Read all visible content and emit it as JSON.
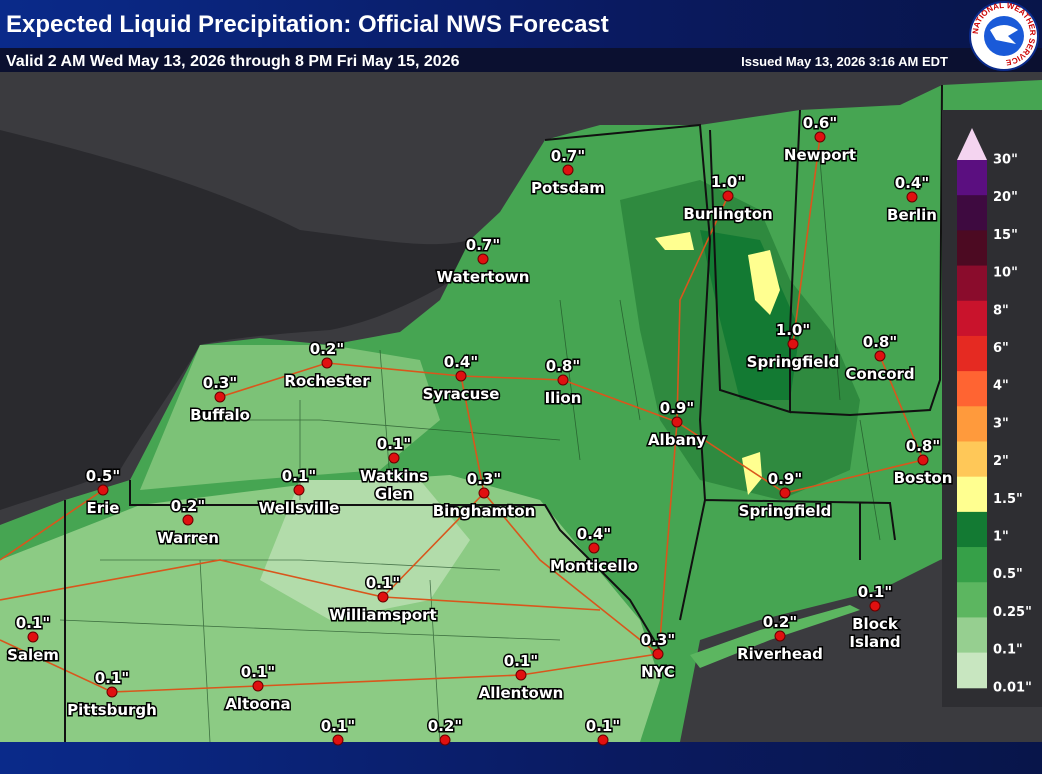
{
  "header": {
    "title": "Expected Liquid Precipitation: Official NWS Forecast",
    "valid": "Valid 2 AM Wed May 13, 2026 through 8 PM Fri May 15, 2026",
    "issued": "Issued May 13, 2026 3:16 AM EDT",
    "logo_text": "NATIONAL WEATHER SERVICE"
  },
  "cities": [
    {
      "name": "Potsdam",
      "amount": "0.7\""
    },
    {
      "name": "Newport",
      "amount": "0.6\""
    },
    {
      "name": "Burlington",
      "amount": "1.0\""
    },
    {
      "name": "Berlin",
      "amount": "0.4\""
    },
    {
      "name": "Watertown",
      "amount": "0.7\""
    },
    {
      "name": "Rochester",
      "amount": "0.2\""
    },
    {
      "name": "Syracuse",
      "amount": "0.4\""
    },
    {
      "name": "Ilion",
      "amount": "0.8\""
    },
    {
      "name": "Buffalo",
      "amount": "0.3\""
    },
    {
      "name": "Springfield",
      "amount": "1.0\""
    },
    {
      "name": "Concord",
      "amount": "0.8\""
    },
    {
      "name": "Albany",
      "amount": "0.9\""
    },
    {
      "name": "Boston",
      "amount": "0.8\""
    },
    {
      "name": [
        "Watkins",
        "Glen"
      ],
      "amount": "0.1\""
    },
    {
      "name": "Wellsville",
      "amount": "0.1\""
    },
    {
      "name": "Binghamton",
      "amount": "0.3\""
    },
    {
      "name": "Erie",
      "amount": "0.5\""
    },
    {
      "name": "Warren",
      "amount": "0.2\""
    },
    {
      "name": "Springfield",
      "amount": "0.9\""
    },
    {
      "name": "Monticello",
      "amount": "0.4\""
    },
    {
      "name": "Williamsport",
      "amount": "0.1\""
    },
    {
      "name": [
        "Block",
        "Island"
      ],
      "amount": "0.1\""
    },
    {
      "name": "Riverhead",
      "amount": "0.2\""
    },
    {
      "name": "NYC",
      "amount": "0.3\""
    },
    {
      "name": "Salem",
      "amount": "0.1\""
    },
    {
      "name": "Pittsburgh",
      "amount": "0.1\""
    },
    {
      "name": "Altoona",
      "amount": "0.1\""
    },
    {
      "name": "Allentown",
      "amount": "0.1\""
    },
    {
      "amount": "0.1\""
    },
    {
      "amount": "0.2\""
    },
    {
      "amount": "0.1\""
    }
  ],
  "legend": {
    "top_color": "#f4d4f0",
    "labels": [
      "30\"",
      "20\"",
      "15\"",
      "10\"",
      "8\"",
      "6\"",
      "4\"",
      "3\"",
      "2\"",
      "1.5\"",
      "1\"",
      "0.5\"",
      "0.25\"",
      "0.1\"",
      "0.01\""
    ],
    "colors": [
      "#5b0f80",
      "#3e0a40",
      "#4c0a22",
      "#8a0c2c",
      "#c9132c",
      "#e52a22",
      "#ff6432",
      "#ff9a3c",
      "#ffc858",
      "#ffff90",
      "#137a33",
      "#36a048",
      "#5cb660",
      "#96cf90",
      "#c8e6c0"
    ]
  }
}
